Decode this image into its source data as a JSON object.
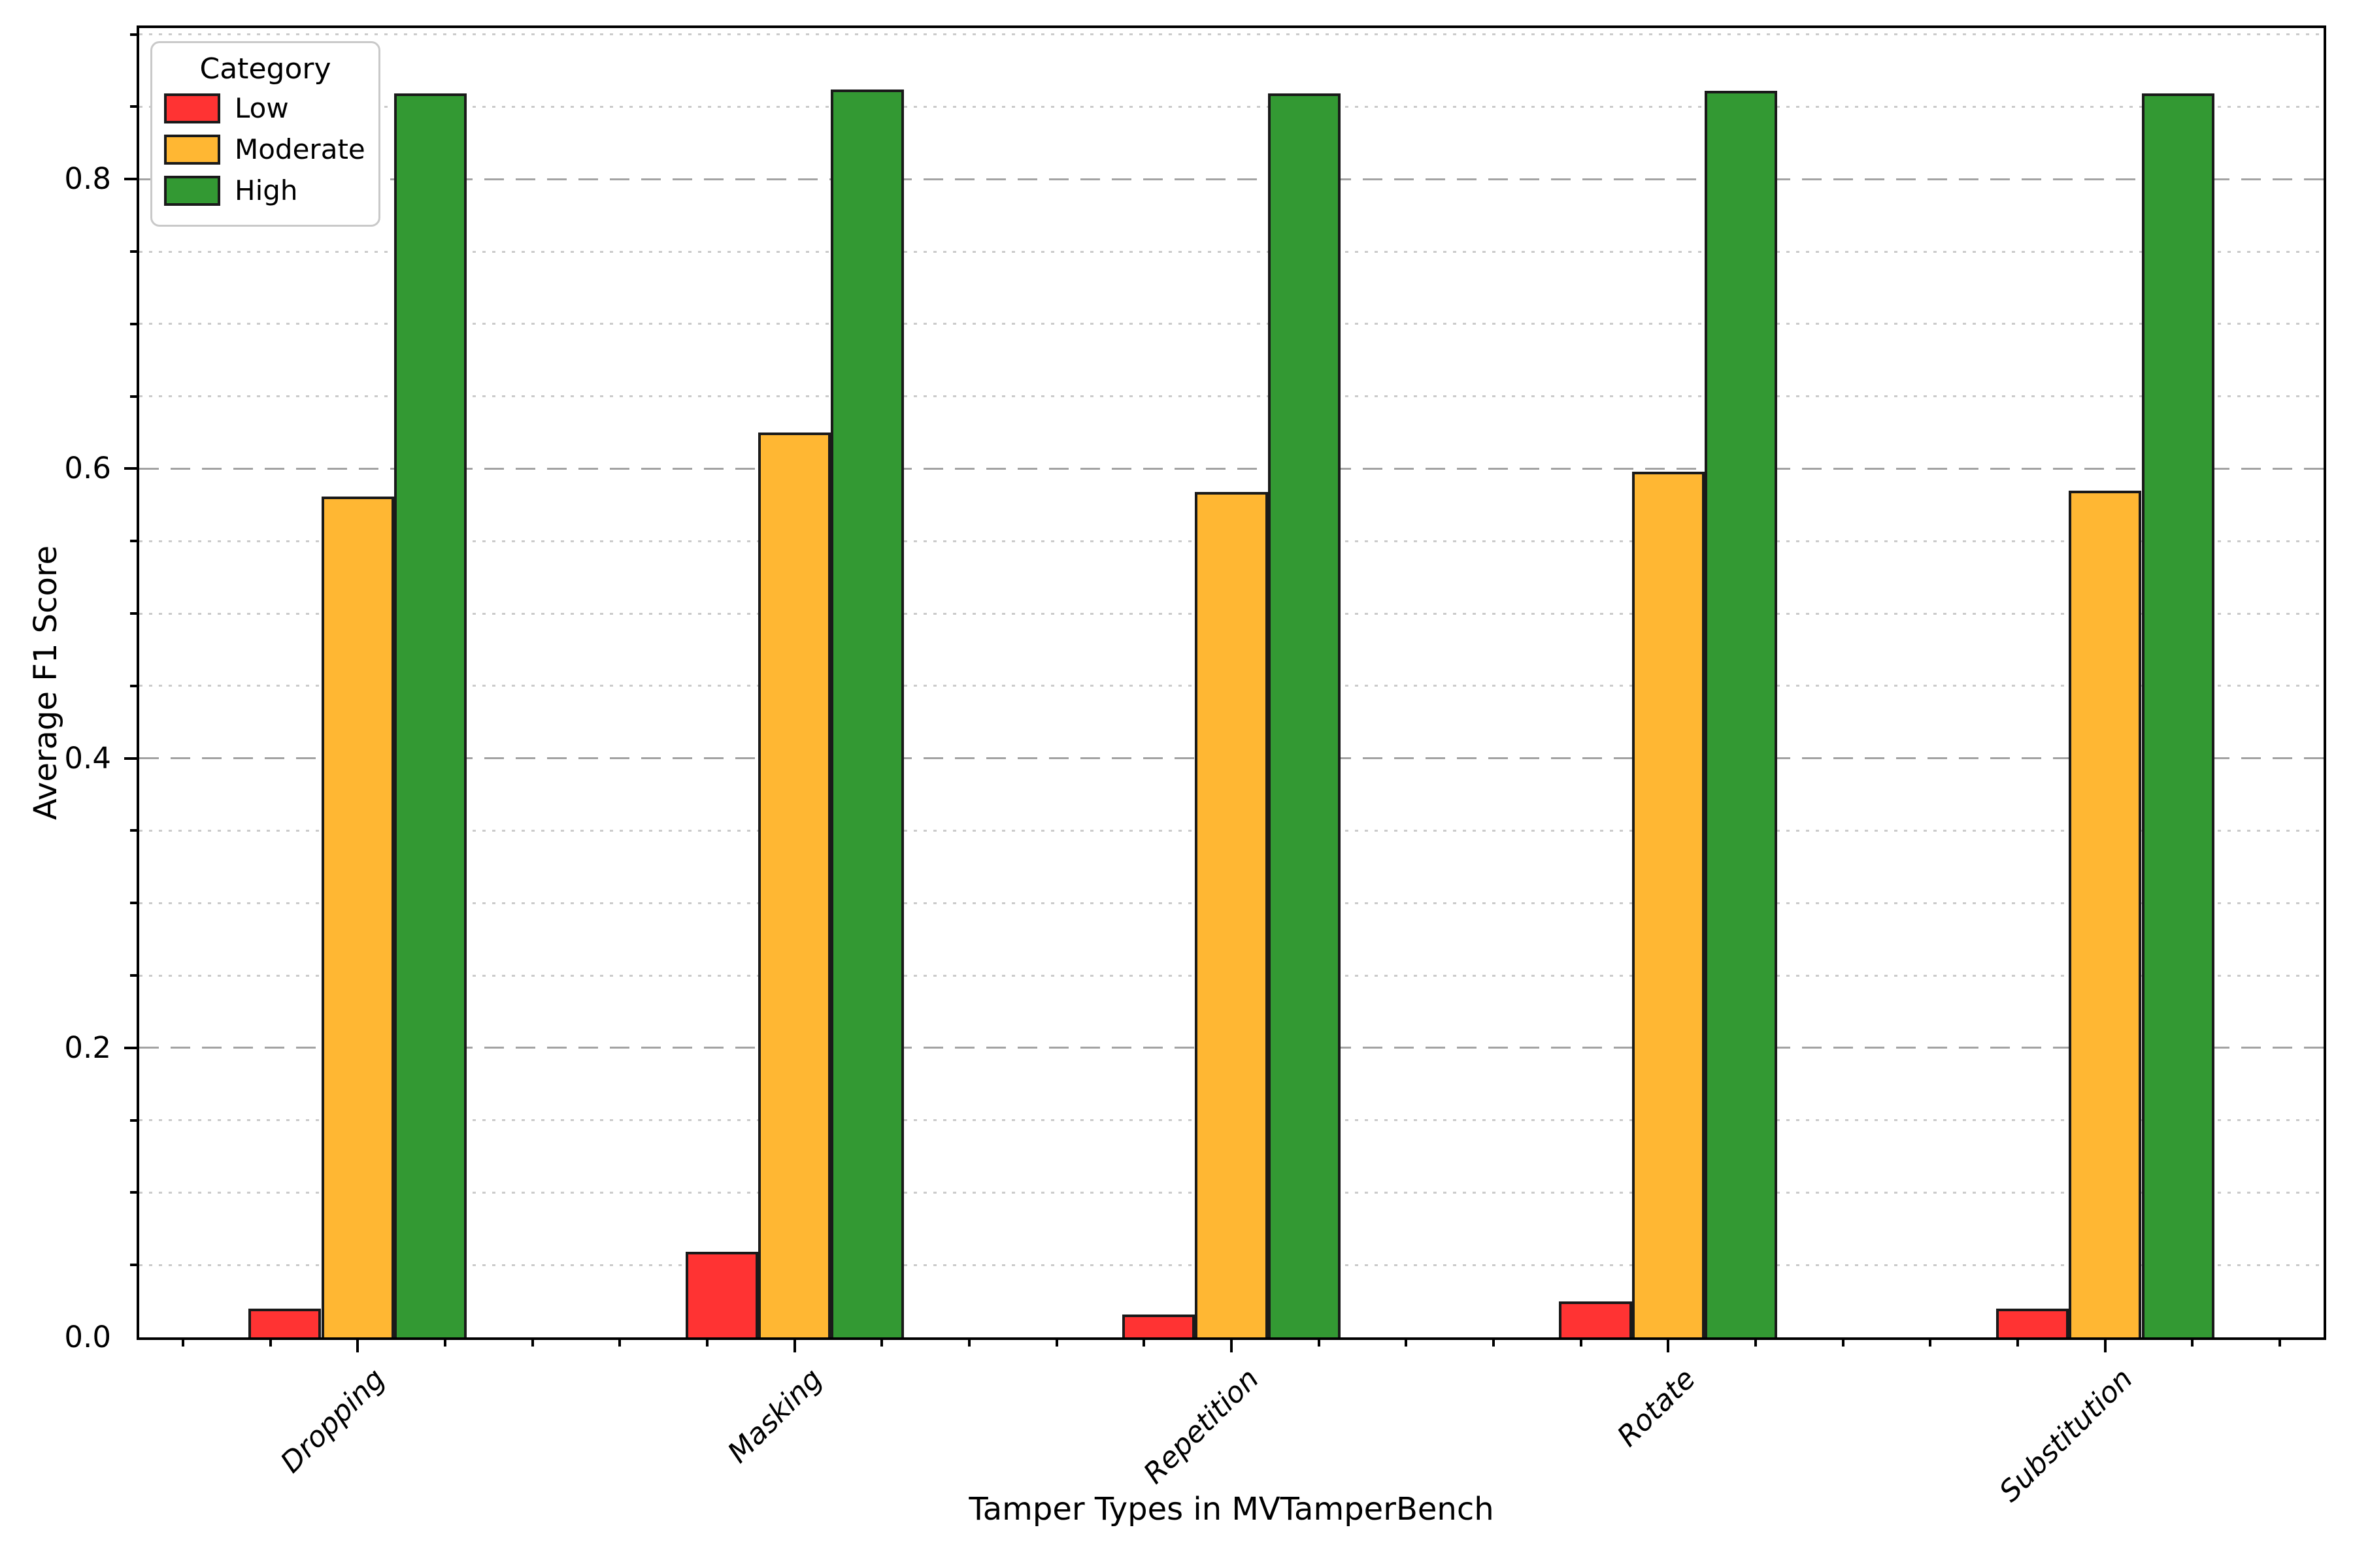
{
  "chart_data": {
    "type": "bar",
    "title": "",
    "xlabel": "Tamper Types in MVTamperBench",
    "ylabel": "Average F1 Score",
    "categories": [
      "Dropping",
      "Masking",
      "Repetition",
      "Rotate",
      "Substitution"
    ],
    "series": [
      {
        "name": "Low",
        "color": "#ff3333",
        "values": [
          0.02,
          0.059,
          0.016,
          0.025,
          0.02
        ]
      },
      {
        "name": "Moderate",
        "color": "#ffb733",
        "values": [
          0.581,
          0.625,
          0.584,
          0.598,
          0.585
        ]
      },
      {
        "name": "High",
        "color": "#339933",
        "values": [
          0.859,
          0.862,
          0.859,
          0.861,
          0.859
        ]
      }
    ],
    "legend": {
      "title": "Category",
      "position": "upper left"
    },
    "y_ticks": [
      "0.0",
      "0.2",
      "0.4",
      "0.6",
      "0.8"
    ],
    "ylim": [
      0,
      0.904
    ],
    "y_major_step": 0.2,
    "y_minor_step": 0.05,
    "bar_edge_color": "#1a1a1a",
    "grid": {
      "major_style": "dashed",
      "minor_style": "dotted",
      "major_color": "#a3a3a3",
      "minor_color": "#cbcbcb"
    }
  }
}
